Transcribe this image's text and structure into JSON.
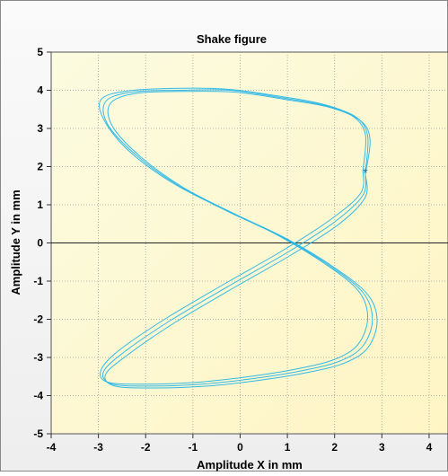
{
  "chart_data": {
    "type": "line",
    "title": "Shake figure",
    "xlabel": "Amplitude X in mm",
    "ylabel": "Amplitude Y in mm",
    "xlim": [
      -4,
      4.4
    ],
    "ylim": [
      -5,
      5
    ],
    "x_ticks": [
      "-4",
      "-3",
      "-2",
      "-1",
      "0",
      "1",
      "2",
      "3",
      "4"
    ],
    "y_ticks": [
      "5",
      "4",
      "3",
      "2",
      "1",
      "0",
      "-1",
      "-2",
      "-3",
      "-4",
      "-5"
    ],
    "grid": true,
    "zero_line": true,
    "marker": {
      "x": 2.65,
      "y": 1.85,
      "symbol": "*"
    },
    "series": [
      {
        "x": [
          2.65,
          2.7,
          2.45,
          1.8,
          0.9,
          -0.2,
          -1.3,
          -2.3,
          -2.85,
          -2.8,
          -2.2,
          -1.3,
          -0.2,
          0.9,
          1.9,
          2.6,
          2.8,
          2.6,
          2.1,
          1.3,
          0.3,
          -0.8,
          -1.9,
          -2.7,
          -2.9,
          -2.5,
          -1.5,
          -0.2,
          1.0,
          2.0,
          2.6,
          2.65
        ],
        "y": [
          1.85,
          2.8,
          3.3,
          3.6,
          3.8,
          4.0,
          4.0,
          3.95,
          3.7,
          3.1,
          2.3,
          1.5,
          0.8,
          0.15,
          -0.6,
          -1.3,
          -2.0,
          -2.7,
          -3.1,
          -3.35,
          -3.55,
          -3.7,
          -3.75,
          -3.7,
          -3.4,
          -2.9,
          -2.05,
          -1.1,
          -0.25,
          0.55,
          1.25,
          1.85
        ]
      },
      {
        "x": [
          2.65,
          2.75,
          2.55,
          1.9,
          1.0,
          -0.1,
          -1.2,
          -2.2,
          -2.75,
          -2.7,
          -2.1,
          -1.2,
          -0.1,
          1.0,
          2.0,
          2.7,
          2.9,
          2.7,
          2.2,
          1.4,
          0.4,
          -0.7,
          -1.8,
          -2.65,
          -2.85,
          -2.4,
          -1.4,
          -0.1,
          1.1,
          2.1,
          2.65,
          2.65
        ],
        "y": [
          1.8,
          2.7,
          3.2,
          3.55,
          3.75,
          3.95,
          3.97,
          3.92,
          3.65,
          3.05,
          2.25,
          1.45,
          0.75,
          0.1,
          -0.65,
          -1.35,
          -2.05,
          -2.75,
          -3.15,
          -3.4,
          -3.6,
          -3.75,
          -3.8,
          -3.75,
          -3.45,
          -2.95,
          -2.1,
          -1.15,
          -0.3,
          0.5,
          1.2,
          1.8
        ]
      },
      {
        "x": [
          2.6,
          2.65,
          2.35,
          1.7,
          0.8,
          -0.3,
          -1.4,
          -2.4,
          -2.95,
          -2.85,
          -2.3,
          -1.4,
          -0.3,
          0.8,
          1.8,
          2.5,
          2.7,
          2.5,
          2.0,
          1.2,
          0.2,
          -0.9,
          -2.0,
          -2.8,
          -2.95,
          -2.6,
          -1.6,
          -0.3,
          0.9,
          1.9,
          2.55,
          2.6
        ],
        "y": [
          1.9,
          2.85,
          3.35,
          3.65,
          3.85,
          4.03,
          4.05,
          3.98,
          3.75,
          3.15,
          2.35,
          1.55,
          0.85,
          0.2,
          -0.55,
          -1.25,
          -1.95,
          -2.65,
          -3.05,
          -3.3,
          -3.5,
          -3.65,
          -3.7,
          -3.65,
          -3.35,
          -2.85,
          -2.0,
          -1.05,
          -0.2,
          0.6,
          1.3,
          1.9
        ]
      }
    ],
    "colors": {
      "line": "#29b6e8",
      "marker": "#1a73a8",
      "bg_top": "#f9f9d0",
      "bg_bottom": "#fff7c8",
      "frame_bg": "#f4f4f4",
      "grid": "#a0a0a0"
    }
  }
}
